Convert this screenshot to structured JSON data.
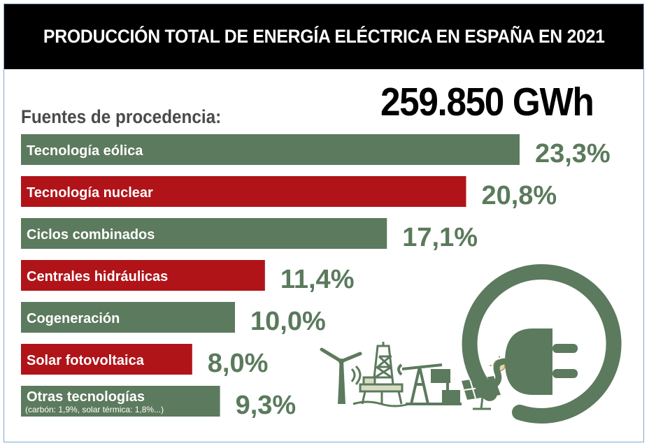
{
  "header": {
    "title": "PRODUCCIÓN TOTAL DE ENERGÍA ELÉCTRICA EN ESPAÑA EN 2021"
  },
  "total": "259.850 GWh",
  "subtitle": "Fuentes de procedencia:",
  "colors": {
    "green": "#5c7a5d",
    "red": "#b01419",
    "value_text": "#5a7a5c",
    "header_bg": "#000000"
  },
  "icons": [
    "wind-turbine-icon",
    "oil-platform-icon",
    "oil-pump-icon",
    "solar-panel-icon",
    "electric-plug-icon"
  ],
  "chart_data": {
    "type": "bar",
    "orientation": "horizontal",
    "title": "PRODUCCIÓN TOTAL DE ENERGÍA ELÉCTRICA EN ESPAÑA EN 2021",
    "categories": [
      "Tecnología eólica",
      "Tecnología nuclear",
      "Ciclos combinados",
      "Centrales hidráulicas",
      "Cogeneración",
      "Solar fotovoltaica",
      "Otras tecnologías"
    ],
    "values": [
      23.3,
      20.8,
      17.1,
      11.4,
      10.0,
      8.0,
      9.3
    ],
    "value_labels": [
      "23,3%",
      "20,8%",
      "17,1%",
      "11,4%",
      "10,0%",
      "8,0%",
      "9,3%"
    ],
    "bar_colors": [
      "green",
      "red",
      "green",
      "red",
      "green",
      "red",
      "green"
    ],
    "notes": [
      "",
      "",
      "",
      "",
      "",
      "",
      "(carbón: 1,9%, solar térmica: 1,8%...)"
    ]
  }
}
